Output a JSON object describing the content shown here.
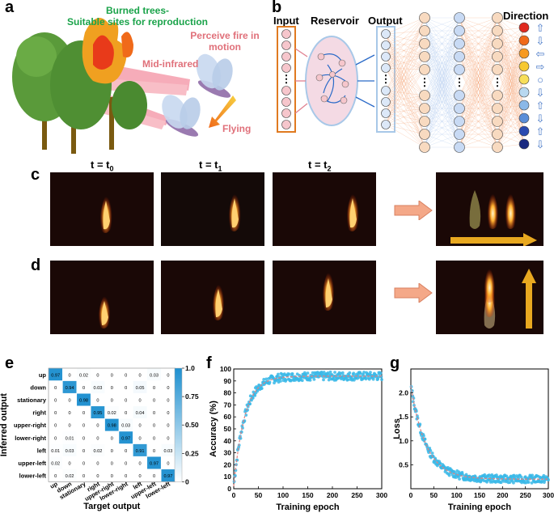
{
  "panel_labels": [
    "a",
    "b",
    "c",
    "d",
    "e",
    "f",
    "g"
  ],
  "panel_a": {
    "title_line1": "Burned trees-",
    "title_line2": "Suitable sites for reproduction",
    "perceive_line1": "Perceive fire in",
    "perceive_line2": "motion",
    "mid_infrared": "Mid-infrared",
    "flying": "Flying",
    "colors": {
      "green": "#1aa34a",
      "pink": "#e0707a",
      "orange": "#f0a020"
    }
  },
  "panel_b": {
    "input": "Input",
    "reservoir": "Reservoir",
    "output": "Output",
    "direction": "Direction",
    "dots": "⋮",
    "direction_colors": [
      "#e02a20",
      "#f06a1a",
      "#f79a20",
      "#f7c830",
      "#f7de5a",
      "#b8d8f0",
      "#8ab8e8",
      "#5a8ed8",
      "#2a4ab0",
      "#1a2a80"
    ],
    "direction_arrows": [
      "⇧",
      "⇩",
      "⇦",
      "⇨",
      "○",
      "⇩",
      "⇧",
      "⇩",
      "⇧",
      "⇩"
    ]
  },
  "panel_c": {
    "t0_base": "t = t",
    "t0_sub": "0",
    "t1_base": "t = t",
    "t1_sub": "1",
    "t2_base": "t = t",
    "t2_sub": "2"
  },
  "chart_data": [
    {
      "type": "heatmap",
      "panel": "e",
      "xlabel": "Target output",
      "ylabel": "Inferred output",
      "categories": [
        "up",
        "down",
        "stationary",
        "right",
        "upper-right",
        "lower-right",
        "left",
        "upper-left",
        "lower-left"
      ],
      "values": [
        [
          0.97,
          0,
          0.02,
          0,
          0,
          0,
          0,
          0.03,
          0
        ],
        [
          0,
          0.94,
          0,
          0.03,
          0,
          0,
          0.05,
          0,
          0
        ],
        [
          0,
          0,
          0.98,
          0,
          0,
          0,
          0,
          0,
          0
        ],
        [
          0,
          0,
          0,
          0.95,
          0.02,
          0,
          0.04,
          0,
          0
        ],
        [
          0,
          0,
          0,
          0,
          0.98,
          0.03,
          0,
          0,
          0
        ],
        [
          0,
          0.01,
          0,
          0,
          0,
          0.97,
          0,
          0,
          0
        ],
        [
          0.01,
          0.03,
          0,
          0.02,
          0,
          0,
          0.91,
          0,
          0.03
        ],
        [
          0.02,
          0,
          0,
          0,
          0,
          0,
          0,
          0.97,
          0
        ],
        [
          0,
          0.02,
          0,
          0,
          0,
          0,
          0,
          0,
          0.97
        ]
      ],
      "cell_labels": [
        [
          "0.97",
          "0",
          "0.02",
          "0",
          "0",
          "0",
          "0",
          "0.03",
          "0"
        ],
        [
          "0",
          "0.94",
          "0",
          "0.03",
          "0",
          "0",
          "0.05",
          "0",
          "0"
        ],
        [
          "0",
          "0",
          "0.98",
          "0",
          "0",
          "0",
          "0",
          "0",
          "0"
        ],
        [
          "0",
          "0",
          "0",
          "0.95",
          "0.02",
          "0",
          "0.04",
          "0",
          "0"
        ],
        [
          "0",
          "0",
          "0",
          "0",
          "0.98",
          "0.03",
          "0",
          "0",
          "0"
        ],
        [
          "0",
          "0.01",
          "0",
          "0",
          "0",
          "0.97",
          "0",
          "0",
          "0"
        ],
        [
          "0.01",
          "0.03",
          "0",
          "0.02",
          "0",
          "0",
          "0.91",
          "0",
          "0.03"
        ],
        [
          "0.02",
          "0",
          "0",
          "0",
          "0",
          "0",
          "0",
          "0.97",
          "0"
        ],
        [
          "0",
          "0.02",
          "0",
          "0",
          "0",
          "0",
          "0",
          "0",
          "0.97"
        ]
      ],
      "colorbar": {
        "ticks": [
          "0",
          "0.25",
          "0.50",
          "0.75",
          "1.0"
        ],
        "range": [
          0,
          1
        ],
        "colors": [
          "#ffffff",
          "#1e90d0"
        ]
      }
    },
    {
      "type": "scatter",
      "panel": "f",
      "xlabel": "Training epoch",
      "ylabel": "Accuracy (%)",
      "xlim": [
        0,
        300
      ],
      "ylim": [
        0,
        100
      ],
      "xticks": [
        "0",
        "50",
        "100",
        "150",
        "200",
        "250",
        "300"
      ],
      "yticks": [
        "0",
        "10",
        "20",
        "30",
        "40",
        "50",
        "60",
        "70",
        "80",
        "90",
        "100"
      ],
      "fit": {
        "a": 92,
        "k": 0.045
      },
      "noise": 3.5,
      "colors": {
        "points": "#3ab8e8",
        "fit": "#e08080"
      }
    },
    {
      "type": "scatter",
      "panel": "g",
      "xlabel": "Training epoch",
      "ylabel": "Loss",
      "xlim": [
        0,
        300
      ],
      "ylim": [
        0,
        2.5
      ],
      "xticks": [
        "0",
        "50",
        "100",
        "150",
        "200",
        "250",
        "300"
      ],
      "yticks": [
        "0.5",
        "1.0",
        "1.5",
        "2.0"
      ],
      "fit": {
        "a": 1.95,
        "k": 0.03,
        "c": 0.2
      },
      "noise": 0.08,
      "colors": {
        "points": "#3ab8e8",
        "fit": "#e08080"
      }
    }
  ]
}
